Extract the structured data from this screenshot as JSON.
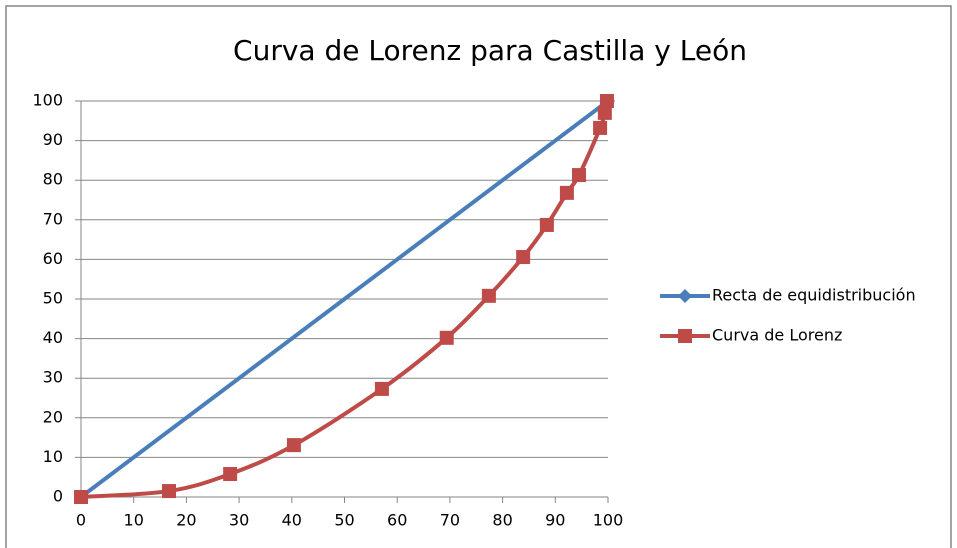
{
  "chart_data": {
    "type": "line",
    "title": "Curva de Lorenz para Castilla y León",
    "series": [
      {
        "name": "Recta de equidistribución",
        "color": "#4a7ebb",
        "marker": "diamond",
        "x": [
          0,
          100
        ],
        "values": [
          0,
          100
        ]
      },
      {
        "name": "Curva de Lorenz",
        "color": "#be4b48",
        "marker": "square",
        "x": [
          0,
          16.7,
          28.3,
          40.4,
          57.1,
          69.4,
          77.4,
          83.9,
          88.4,
          92.2,
          94.5,
          98.5,
          99.4,
          99.8
        ],
        "values": [
          0,
          1.5,
          5.8,
          13.1,
          27.3,
          40.2,
          50.8,
          60.6,
          68.7,
          76.8,
          81.3,
          93.2,
          97,
          100
        ]
      }
    ],
    "xlim": [
      0,
      100
    ],
    "xticks": [
      0,
      10,
      20,
      30,
      40,
      50,
      60,
      70,
      80,
      90,
      100
    ],
    "ylim": [
      0,
      100
    ],
    "yticks": [
      0,
      10,
      20,
      30,
      40,
      50,
      60,
      70,
      80,
      90,
      100
    ],
    "grid": true,
    "legend": "right"
  }
}
